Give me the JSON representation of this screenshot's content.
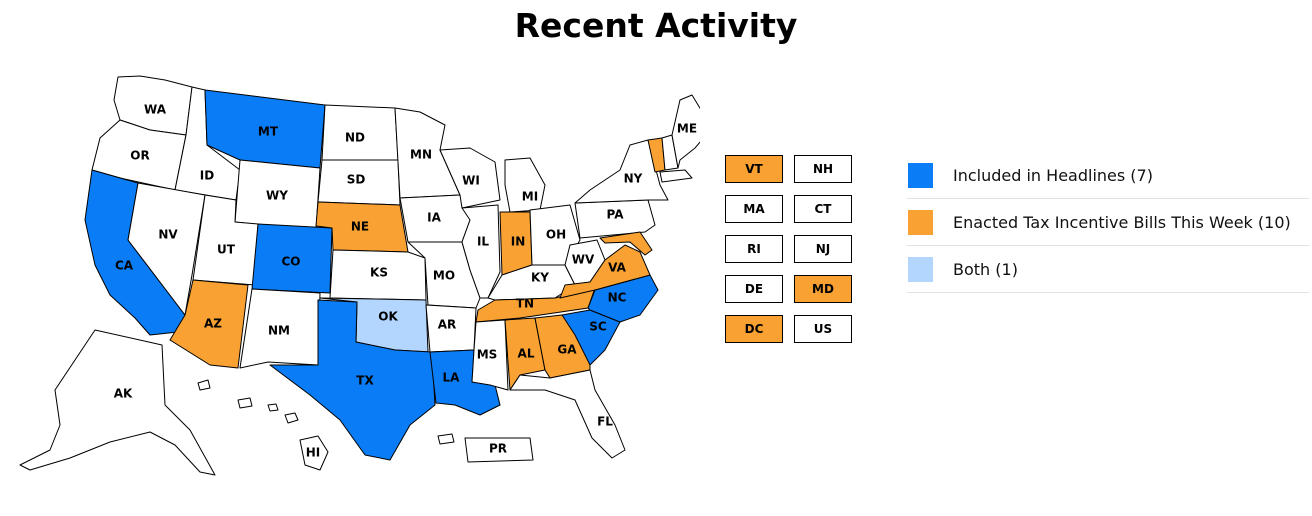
{
  "title": "Recent Activity",
  "colors": {
    "headlines": "#0a7cf5",
    "enacted": "#f9a233",
    "both": "#b3d6ff",
    "none": "#ffffff"
  },
  "legend": [
    {
      "label": "Included in Headlines (7)",
      "color": "#0a7cf5"
    },
    {
      "label": "Enacted Tax Incentive Bills This Week (10)",
      "color": "#f9a233"
    },
    {
      "label": "Both (1)",
      "color": "#b3d6ff"
    }
  ],
  "states": [
    {
      "code": "WA",
      "status": "none"
    },
    {
      "code": "OR",
      "status": "none"
    },
    {
      "code": "CA",
      "status": "headlines"
    },
    {
      "code": "ID",
      "status": "none"
    },
    {
      "code": "NV",
      "status": "none"
    },
    {
      "code": "MT",
      "status": "headlines"
    },
    {
      "code": "WY",
      "status": "none"
    },
    {
      "code": "UT",
      "status": "none"
    },
    {
      "code": "AZ",
      "status": "enacted"
    },
    {
      "code": "CO",
      "status": "headlines"
    },
    {
      "code": "NM",
      "status": "none"
    },
    {
      "code": "ND",
      "status": "none"
    },
    {
      "code": "SD",
      "status": "none"
    },
    {
      "code": "NE",
      "status": "enacted"
    },
    {
      "code": "KS",
      "status": "none"
    },
    {
      "code": "OK",
      "status": "both"
    },
    {
      "code": "TX",
      "status": "headlines"
    },
    {
      "code": "MN",
      "status": "none"
    },
    {
      "code": "IA",
      "status": "none"
    },
    {
      "code": "MO",
      "status": "none"
    },
    {
      "code": "AR",
      "status": "none"
    },
    {
      "code": "LA",
      "status": "headlines"
    },
    {
      "code": "WI",
      "status": "none"
    },
    {
      "code": "IL",
      "status": "none"
    },
    {
      "code": "MI",
      "status": "none"
    },
    {
      "code": "IN",
      "status": "enacted"
    },
    {
      "code": "OH",
      "status": "none"
    },
    {
      "code": "KY",
      "status": "none"
    },
    {
      "code": "TN",
      "status": "enacted"
    },
    {
      "code": "MS",
      "status": "none"
    },
    {
      "code": "AL",
      "status": "enacted"
    },
    {
      "code": "GA",
      "status": "enacted"
    },
    {
      "code": "FL",
      "status": "none"
    },
    {
      "code": "SC",
      "status": "headlines"
    },
    {
      "code": "NC",
      "status": "headlines"
    },
    {
      "code": "VA",
      "status": "enacted"
    },
    {
      "code": "WV",
      "status": "none"
    },
    {
      "code": "PA",
      "status": "none"
    },
    {
      "code": "NY",
      "status": "none"
    },
    {
      "code": "ME",
      "status": "none"
    },
    {
      "code": "AK",
      "status": "none"
    },
    {
      "code": "HI",
      "status": "none"
    },
    {
      "code": "PR",
      "status": "none"
    }
  ],
  "small_states": [
    {
      "code": "VT",
      "status": "enacted"
    },
    {
      "code": "NH",
      "status": "none"
    },
    {
      "code": "MA",
      "status": "none"
    },
    {
      "code": "CT",
      "status": "none"
    },
    {
      "code": "RI",
      "status": "none"
    },
    {
      "code": "NJ",
      "status": "none"
    },
    {
      "code": "DE",
      "status": "none"
    },
    {
      "code": "MD",
      "status": "enacted"
    },
    {
      "code": "DC",
      "status": "enacted"
    },
    {
      "code": "US",
      "status": "none"
    }
  ]
}
